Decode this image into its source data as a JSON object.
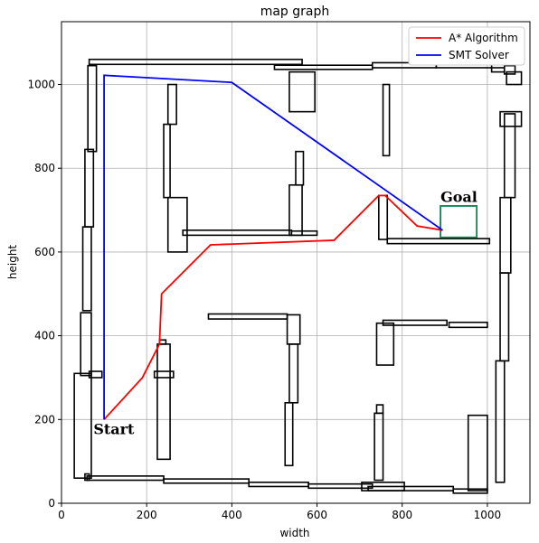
{
  "chart_data": {
    "type": "line",
    "title": "map graph",
    "xlabel": "width",
    "ylabel": "height",
    "xlim": [
      0,
      1100
    ],
    "ylim": [
      0,
      1150
    ],
    "xticks": [
      0,
      200,
      400,
      600,
      800,
      1000
    ],
    "yticks": [
      0,
      200,
      400,
      600,
      800,
      1000
    ],
    "grid": true,
    "legend_position": "top-right",
    "series": [
      {
        "name": "A* Algorithm",
        "color": "#ff0000",
        "x": [
          100,
          190,
          230,
          235,
          350,
          640,
          745,
          760,
          835,
          895
        ],
        "y": [
          200,
          300,
          380,
          500,
          617,
          628,
          735,
          735,
          662,
          652
        ]
      },
      {
        "name": "SMT Solver",
        "color": "#0000ff",
        "x": [
          100,
          100,
          400,
          895
        ],
        "y": [
          200,
          1022,
          1005,
          652
        ]
      }
    ],
    "annotations": [
      {
        "text": "Start",
        "x": 75,
        "y": 165
      },
      {
        "text": "Goal",
        "x": 890,
        "y": 720
      }
    ],
    "goal_box": {
      "x": [
        890,
        975
      ],
      "y": [
        635,
        710
      ],
      "color": "#009955"
    },
    "obstacles": [
      [
        65,
        1048,
        500,
        12
      ],
      [
        500,
        1036,
        230,
        10
      ],
      [
        730,
        1040,
        150,
        12
      ],
      [
        880,
        1040,
        130,
        12
      ],
      [
        1010,
        1030,
        30,
        10
      ],
      [
        1040,
        1025,
        25,
        20
      ],
      [
        60,
        55,
        180,
        10
      ],
      [
        240,
        48,
        200,
        10
      ],
      [
        440,
        40,
        140,
        10
      ],
      [
        580,
        36,
        150,
        10
      ],
      [
        720,
        30,
        200,
        10
      ],
      [
        920,
        24,
        80,
        10
      ],
      [
        55,
        55,
        10,
        15
      ],
      [
        30,
        60,
        40,
        250
      ],
      [
        45,
        305,
        25,
        150
      ],
      [
        50,
        460,
        20,
        200
      ],
      [
        55,
        660,
        20,
        185
      ],
      [
        62,
        840,
        20,
        205
      ],
      [
        1045,
        1000,
        35,
        30
      ],
      [
        1030,
        900,
        50,
        35
      ],
      [
        1040,
        730,
        25,
        200
      ],
      [
        1030,
        550,
        25,
        180
      ],
      [
        1030,
        340,
        20,
        210
      ],
      [
        1020,
        50,
        20,
        290
      ],
      [
        955,
        30,
        45,
        180
      ],
      [
        65,
        300,
        30,
        15
      ],
      [
        250,
        905,
        20,
        95
      ],
      [
        240,
        730,
        15,
        175
      ],
      [
        250,
        600,
        45,
        130
      ],
      [
        285,
        640,
        255,
        12
      ],
      [
        540,
        640,
        60,
        10
      ],
      [
        535,
        640,
        30,
        120
      ],
      [
        550,
        760,
        18,
        80
      ],
      [
        535,
        935,
        60,
        95
      ],
      [
        755,
        830,
        15,
        170
      ],
      [
        745,
        630,
        20,
        105
      ],
      [
        765,
        620,
        240,
        12
      ],
      [
        890,
        635,
        85,
        75
      ],
      [
        345,
        440,
        185,
        12
      ],
      [
        530,
        380,
        30,
        70
      ],
      [
        535,
        240,
        20,
        140
      ],
      [
        525,
        90,
        18,
        150
      ],
      [
        218,
        300,
        45,
        15
      ],
      [
        225,
        105,
        30,
        275
      ],
      [
        230,
        380,
        15,
        10
      ],
      [
        740,
        330,
        40,
        100
      ],
      [
        755,
        425,
        150,
        12
      ],
      [
        910,
        420,
        90,
        12
      ],
      [
        735,
        55,
        20,
        160
      ],
      [
        740,
        215,
        15,
        20
      ],
      [
        705,
        30,
        100,
        20
      ]
    ]
  }
}
